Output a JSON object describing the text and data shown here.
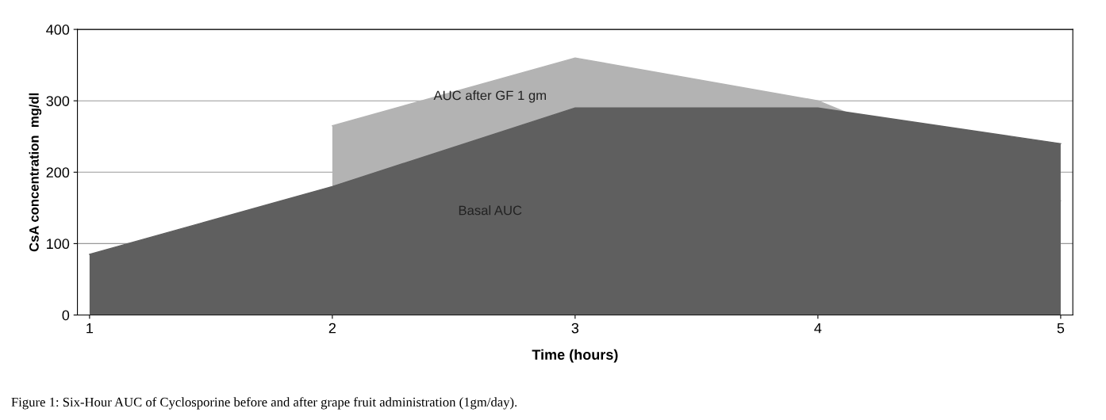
{
  "chart_data": {
    "type": "area",
    "categories": [
      "1",
      "2",
      "3",
      "4",
      "5"
    ],
    "xlabel": "Time (hours)",
    "ylabel": "CsA concentration  mg/dl",
    "series": [
      {
        "name": "AUC after GF 1 gm",
        "color": "#b3b3b3",
        "values": [
          null,
          265,
          360,
          300,
          160
        ]
      },
      {
        "name": "Basal AUC",
        "color": "#5f5f5f",
        "values": [
          85,
          180,
          290,
          290,
          240
        ]
      }
    ],
    "ylim": [
      0,
      400
    ],
    "yticks": [
      0,
      100,
      200,
      300,
      400
    ],
    "grid": "y",
    "legend": false,
    "annotations": [
      "Figure 1: Six-Hour AUC of Cyclosporine before and after grape fruit administration (1gm/day)."
    ]
  }
}
